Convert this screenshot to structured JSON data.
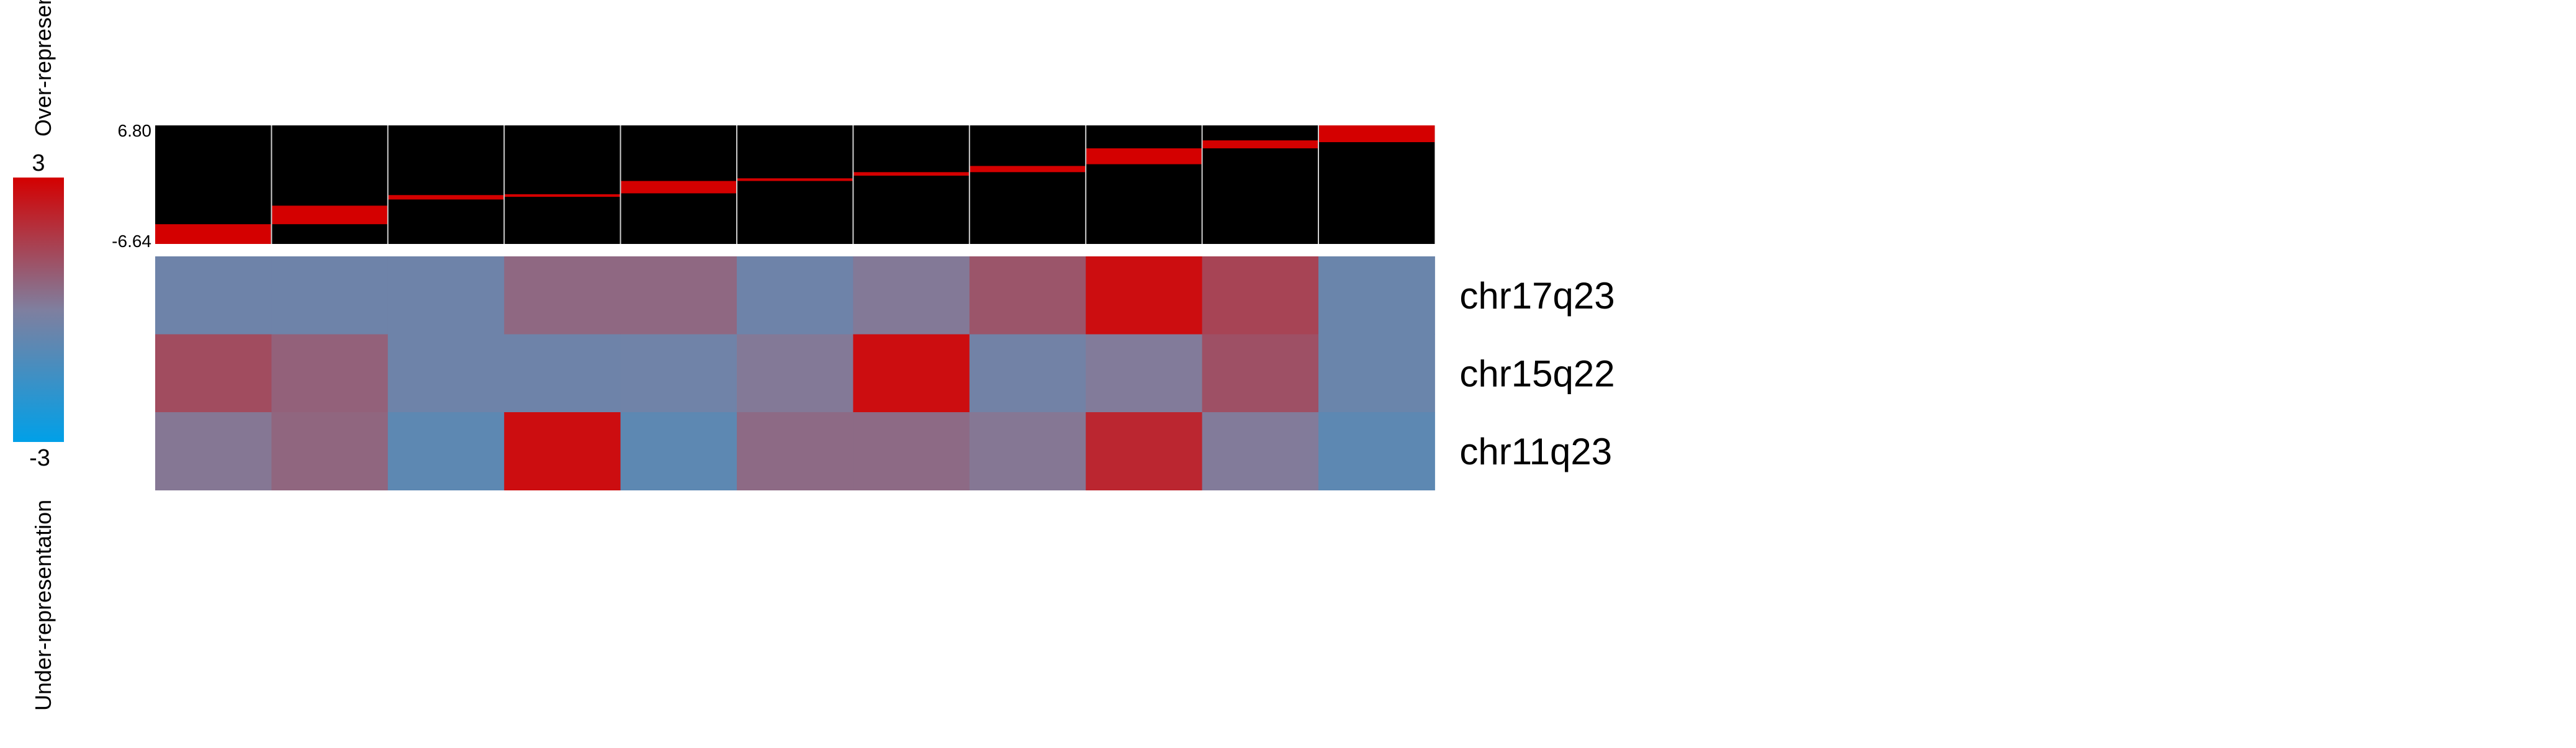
{
  "legend": {
    "over_label": "Over-representation",
    "under_label": "Under-representation",
    "max_label": "3",
    "min_label": "-3",
    "low_color": "#00A0E8",
    "mid_color": "#7F7F9F",
    "high_color": "#D40000"
  },
  "chart_data": {
    "type": "heatmap",
    "title": "",
    "n_columns": 11,
    "rows": [
      "chr17q23",
      "chr15q22",
      "chr11q23"
    ],
    "values": [
      [
        -0.4,
        -0.4,
        -0.4,
        0.55,
        0.55,
        -0.4,
        0.15,
        1.0,
        2.7,
        1.4,
        -0.5
      ],
      [
        1.2,
        0.7,
        -0.4,
        -0.4,
        -0.35,
        0.15,
        2.7,
        -0.3,
        0.1,
        1.1,
        -0.5
      ],
      [
        0.2,
        0.6,
        -0.8,
        2.7,
        -0.8,
        0.5,
        0.5,
        0.2,
        2.1,
        0.1,
        -0.8
      ]
    ],
    "scale_range": [
      -3,
      3
    ],
    "scale_colors": [
      "#00A0E8",
      "#7F7F9F",
      "#D40000"
    ],
    "cell_borders": false,
    "top_annotation": {
      "type": "bar",
      "ylim": [
        -6.64,
        6.8
      ],
      "tick_labels": [
        "6.80",
        "-6.64"
      ],
      "bands": [
        [
          -6.64,
          -4.4
        ],
        [
          -4.4,
          -2.3
        ],
        [
          -1.6,
          -1.1
        ],
        [
          -1.3,
          -1.0
        ],
        [
          -0.9,
          0.5
        ],
        [
          0.5,
          0.8
        ],
        [
          1.1,
          1.5
        ],
        [
          1.5,
          2.2
        ],
        [
          2.4,
          4.2
        ],
        [
          4.2,
          5.1
        ],
        [
          4.9,
          6.8
        ]
      ],
      "band_color": "#D40000",
      "background": "#000000"
    }
  }
}
